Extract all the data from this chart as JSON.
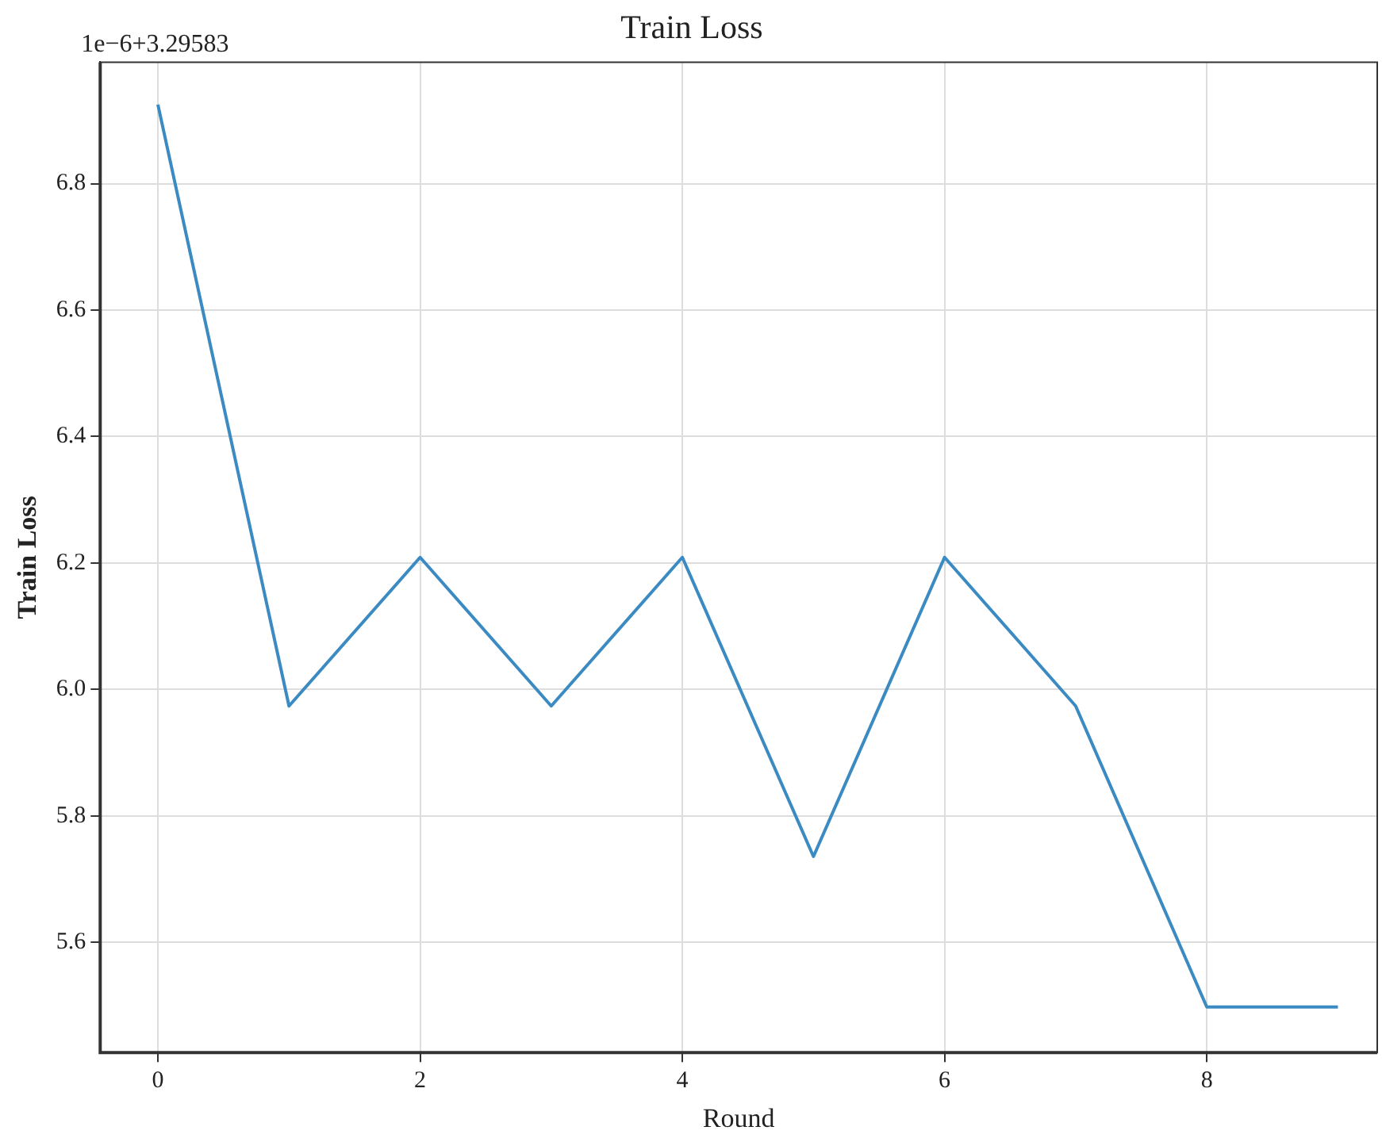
{
  "chart_data": {
    "type": "line",
    "title": "Train Loss",
    "xlabel": "Round",
    "ylabel": "Train Loss",
    "annotations": [
      "1e−6+3.29583"
    ],
    "x": [
      0,
      1,
      2,
      3,
      4,
      5,
      6,
      7,
      8,
      9
    ],
    "series": [
      {
        "color": "#3b8bc2",
        "values": [
          6.925,
          5.974,
          6.209,
          5.974,
          6.209,
          5.736,
          6.209,
          5.974,
          5.498,
          5.498
        ]
      }
    ],
    "xlim": [
      -0.44,
      9.3
    ],
    "xticks": [
      0,
      2,
      4,
      6,
      8
    ],
    "ylim": [
      5.426,
      6.992
    ],
    "yticks": [
      5.6,
      5.8,
      {
        "value": 6,
        "label": "6.0"
      },
      6.2,
      6.4,
      6.6,
      6.8
    ],
    "grid": true,
    "legend": false,
    "marker": "none",
    "line_style": "solid"
  }
}
